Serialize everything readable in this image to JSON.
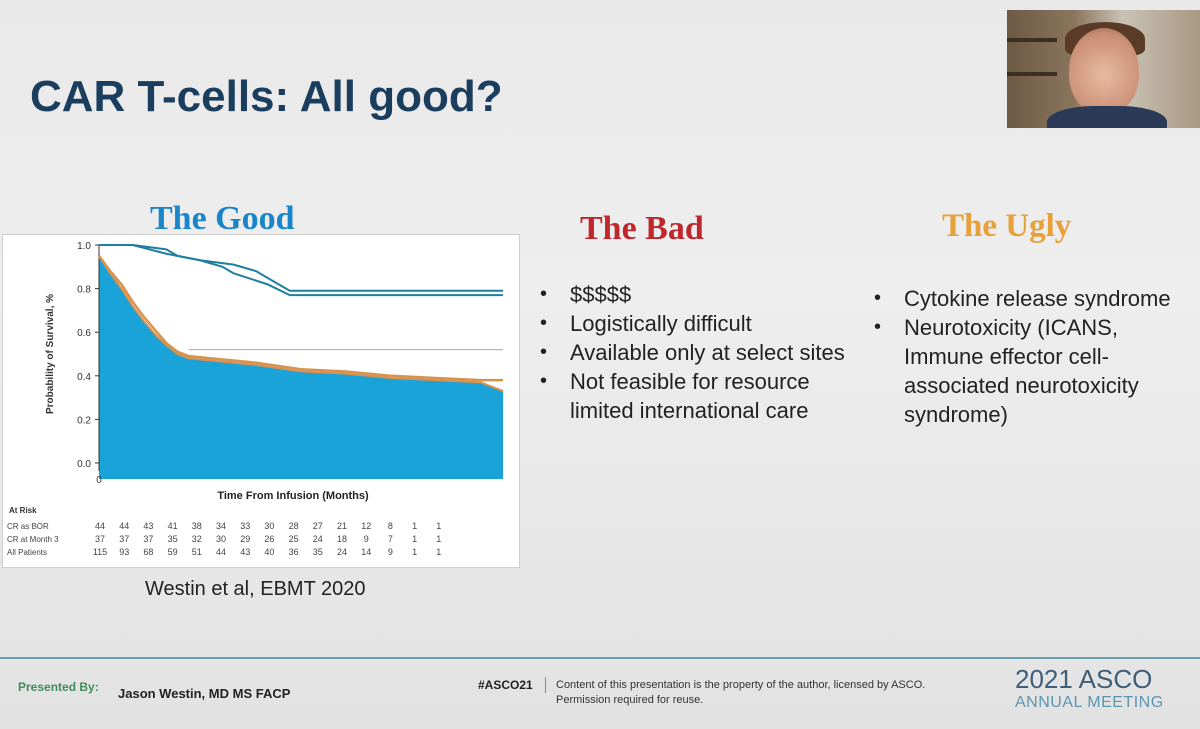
{
  "slide": {
    "title": "CAR T-cells: All good?",
    "good": {
      "heading": "The Good"
    },
    "bad": {
      "heading": "The Bad",
      "bullets": [
        "$$$$$",
        "Logistically difficult",
        "Available only at select sites",
        "Not feasible for resource limited international care"
      ]
    },
    "ugly": {
      "heading": "The Ugly",
      "bullets": [
        "Cytokine release syndrome",
        "Neurotoxicity (ICANS, Immune effector cell-associated neurotoxicity syndrome)"
      ]
    },
    "citation": "Westin et al, EBMT 2020"
  },
  "footer": {
    "presented_by": "Presented By:",
    "presenter": "Jason Westin, MD MS FACP",
    "hashtag": "#ASCO21",
    "disclaimer_1": "Content of this presentation is the property of the author, licensed by ASCO.",
    "disclaimer_2": "Permission required for reuse.",
    "logo_year": "2021 ASCO",
    "logo_sub": "ANNUAL MEETING"
  },
  "colors": {
    "title": "#1b3d5e",
    "good": "#1a86c9",
    "bad": "#c0272d",
    "ugly": "#e8a03a",
    "fill": "#1aa3d9",
    "orange_line": "#d9924e",
    "teal_line": "#1f7f9e"
  },
  "chart_data": {
    "type": "line",
    "xlabel": "Time From Infusion (Months)",
    "ylabel": "Probability of Survival, %",
    "xlim": [
      0,
      36
    ],
    "ylim": [
      0,
      1.0
    ],
    "yticks": [
      "1.0",
      "0.8",
      "0.6",
      "0.4",
      "0.2",
      "0.0"
    ],
    "xticks": [
      "0"
    ],
    "series": [
      {
        "x": [
          0,
          1,
          3,
          6,
          7,
          9,
          12,
          14,
          15,
          17,
          36
        ],
        "y": [
          1.0,
          1.0,
          1.0,
          0.98,
          0.95,
          0.93,
          0.91,
          0.88,
          0.85,
          0.79,
          0.79
        ]
      },
      {
        "x": [
          0,
          1,
          3,
          6,
          9,
          11,
          12,
          15,
          17,
          36
        ],
        "y": [
          1.0,
          1.0,
          1.0,
          0.96,
          0.93,
          0.9,
          0.87,
          0.82,
          0.77,
          0.77
        ]
      },
      {
        "x": [
          0,
          1,
          2,
          3,
          4,
          5,
          6,
          7,
          8,
          10,
          12,
          14,
          18,
          22,
          26,
          30,
          34,
          36
        ],
        "y": [
          0.95,
          0.88,
          0.82,
          0.74,
          0.67,
          0.61,
          0.55,
          0.51,
          0.49,
          0.48,
          0.47,
          0.46,
          0.43,
          0.42,
          0.4,
          0.39,
          0.38,
          0.38
        ]
      },
      {
        "x": [
          0,
          1,
          2,
          3,
          4,
          5,
          6,
          7,
          8,
          10,
          12,
          14,
          18,
          22,
          26,
          30,
          34,
          35,
          36
        ],
        "y": [
          0.95,
          0.87,
          0.8,
          0.72,
          0.65,
          0.59,
          0.54,
          0.5,
          0.48,
          0.47,
          0.46,
          0.45,
          0.42,
          0.41,
          0.39,
          0.38,
          0.37,
          0.35,
          0.33
        ]
      }
    ],
    "reference_line": 0.52,
    "at_risk": {
      "header": "At Risk",
      "rows": [
        {
          "label": "CR as BOR",
          "values": [
            "44",
            "44",
            "43",
            "41",
            "38",
            "34",
            "33",
            "30",
            "28",
            "27",
            "21",
            "12",
            "8",
            "1",
            "1"
          ]
        },
        {
          "label": "CR at Month 3",
          "values": [
            "37",
            "37",
            "37",
            "35",
            "32",
            "30",
            "29",
            "26",
            "25",
            "24",
            "18",
            "9",
            "7",
            "1",
            "1"
          ]
        },
        {
          "label": "All Patients",
          "values": [
            "115",
            "93",
            "68",
            "59",
            "51",
            "44",
            "43",
            "40",
            "36",
            "35",
            "24",
            "14",
            "9",
            "1",
            "1"
          ]
        }
      ]
    }
  }
}
